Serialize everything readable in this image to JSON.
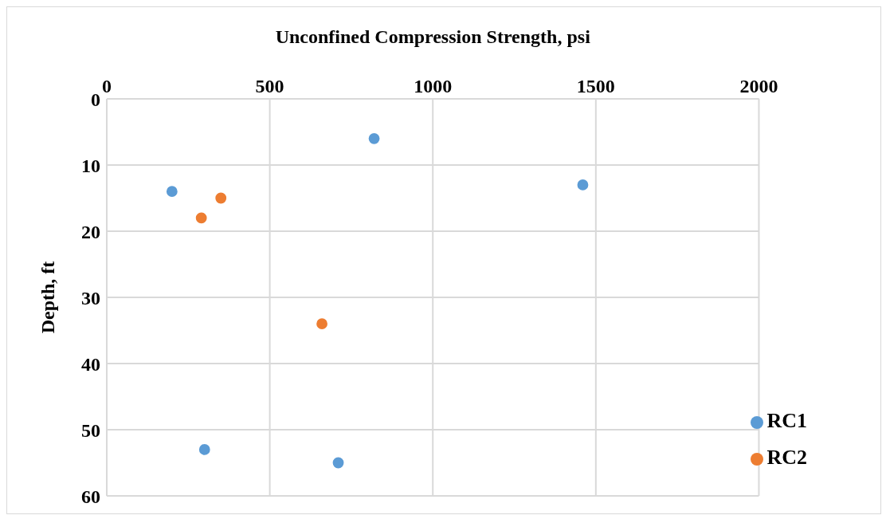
{
  "chart_data": {
    "type": "scatter",
    "xlabel": "Unconfined Compression Strength, psi",
    "ylabel": "Depth, ft",
    "xlim": [
      0,
      2000
    ],
    "xticks": [
      0,
      500,
      1000,
      1500,
      2000
    ],
    "ylim": [
      60,
      0
    ],
    "yticks": [
      0,
      10,
      20,
      30,
      40,
      50,
      60
    ],
    "grid": true,
    "legend": "bottom right",
    "marker": "circle",
    "series": [
      {
        "name": "RC1",
        "color": "#5b9bd5",
        "x": [
          820,
          1460,
          200,
          300,
          710
        ],
        "values": [
          6,
          13,
          14,
          53,
          55
        ]
      },
      {
        "name": "RC2",
        "color": "#ed7d31",
        "x": [
          350,
          290,
          660
        ],
        "values": [
          15,
          18,
          34
        ]
      }
    ]
  }
}
